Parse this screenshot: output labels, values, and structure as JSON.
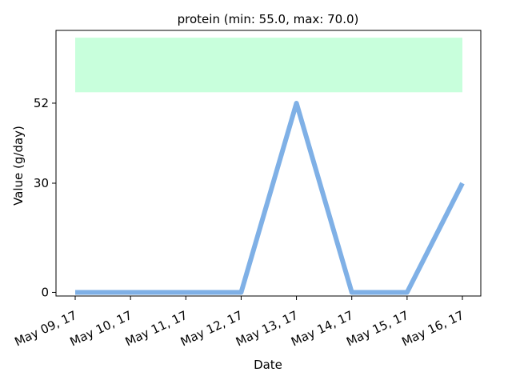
{
  "chart_data": {
    "type": "line",
    "title": "protein (min: 55.0, max: 70.0)",
    "xlabel": "Date",
    "ylabel": "Value (g/day)",
    "categories": [
      "May 09, 17",
      "May 10, 17",
      "May 11, 17",
      "May 12, 17",
      "May 13, 17",
      "May 14, 17",
      "May 15, 17",
      "May 16, 17"
    ],
    "series": [
      {
        "values": [
          0,
          0,
          0,
          0,
          52,
          0,
          0,
          30
        ]
      }
    ],
    "yticks": [
      "0",
      "30",
      "52"
    ],
    "ylim": [
      -1,
      72
    ],
    "band": {
      "min": 55.0,
      "max": 70.0
    },
    "colors": {
      "line": "#7fb0e6",
      "band": "#c8ffdc"
    },
    "grid": false
  }
}
